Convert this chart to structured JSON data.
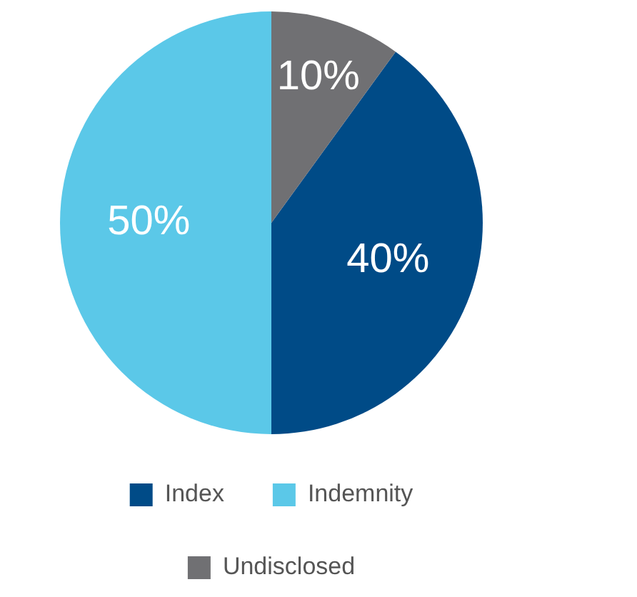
{
  "chart_data": {
    "type": "pie",
    "categories": [
      "Index",
      "Indemnity",
      "Undisclosed"
    ],
    "values": [
      40,
      50,
      10
    ],
    "colors": [
      "#004b87",
      "#5bc8e8",
      "#707073"
    ],
    "value_labels": [
      "40%",
      "50%",
      "10%"
    ],
    "legend": "bottom"
  }
}
